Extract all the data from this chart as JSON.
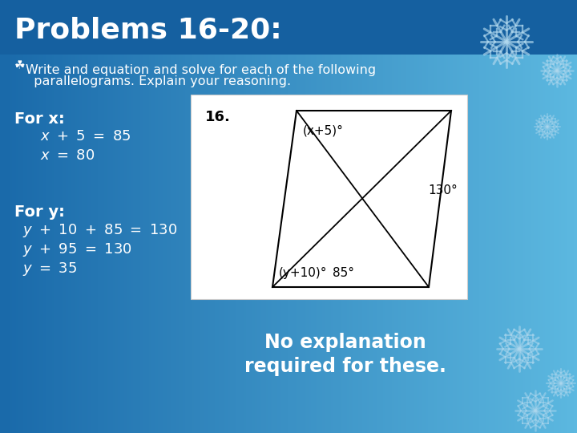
{
  "title": "Problems 16-20:",
  "bg_gradient_top": "#1a6aaa",
  "bg_gradient_bottom": "#5cb8e0",
  "title_color": "#ffffff",
  "title_fontsize": 26,
  "bullet_symbol": "☘",
  "bullet_text_line1": "Write and equation and solve for each of the following",
  "bullet_text_line2": "  parallelograms. Explain your reasoning.",
  "bullet_color": "#ffffff",
  "bullet_fontsize": 11.5,
  "for_x_label": "For x:",
  "for_x_lines": [
    "x + 5 = 85",
    "x = 80"
  ],
  "for_y_label": "For y:",
  "for_y_lines": [
    "y + 10 + 85 = 130",
    "y + 95 = 130",
    "y = 35"
  ],
  "label_fontsize": 14,
  "math_fontsize": 13,
  "problem_number": "16.",
  "angle_top": "(x+5)°",
  "angle_right": "130°",
  "angle_bottom_left": "(y+10)°",
  "angle_bottom_right": "85°",
  "no_explanation_text": "No explanation\nrequired for these.",
  "no_explanation_fontsize": 17,
  "snowflake_color": "#b0d8ee",
  "white": "#ffffff",
  "black": "#000000"
}
